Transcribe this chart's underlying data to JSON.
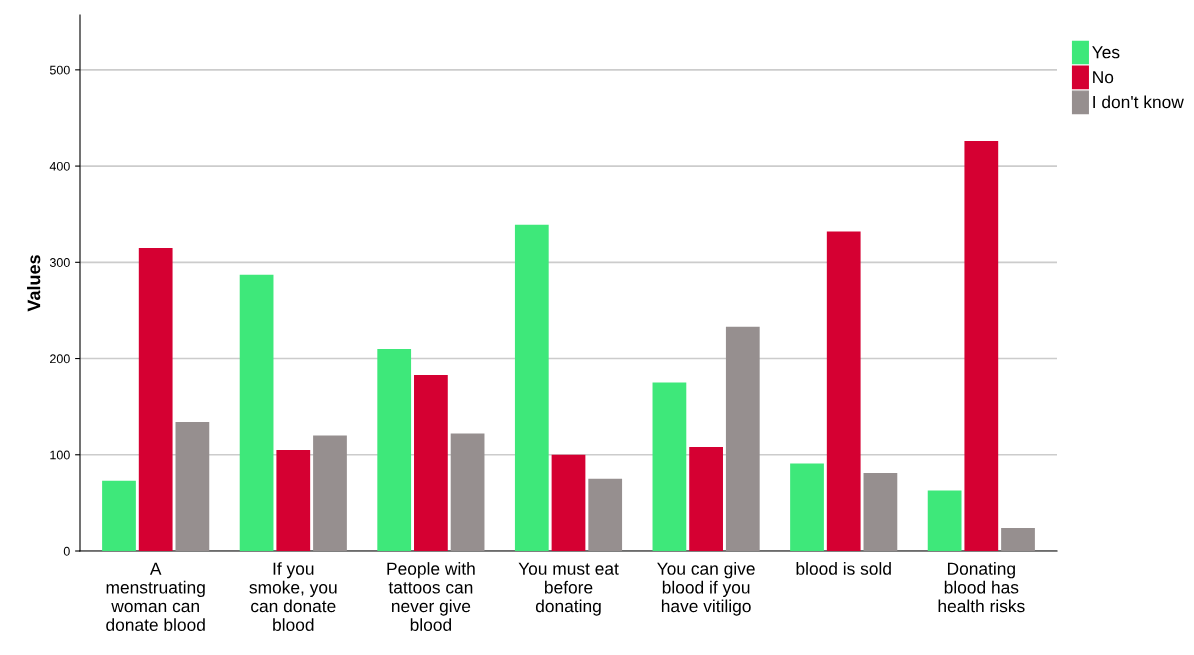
{
  "chart_data": {
    "type": "bar",
    "ylabel": "Values",
    "categories": [
      "A\nmenstruating\nwoman can\ndonate blood",
      "If you\nsmoke, you\ncan donate\nblood",
      "People with\ntattoos can\nnever give\nblood",
      "You must eat\nbefore\ndonating",
      "You can give\nblood if you\nhave vitiligo",
      "blood is sold",
      "Donating\nblood has\nhealth risks"
    ],
    "series": [
      {
        "name": "Yes",
        "color": "#3ee87a",
        "values": [
          73,
          287,
          210,
          339,
          175,
          91,
          63
        ]
      },
      {
        "name": "No",
        "color": "#d50032",
        "values": [
          315,
          105,
          183,
          100,
          108,
          332,
          426
        ]
      },
      {
        "name": "I don't know",
        "color": "#968f8f",
        "values": [
          134,
          120,
          122,
          75,
          233,
          81,
          24
        ]
      }
    ],
    "ylim": [
      0,
      557
    ],
    "yticks": [
      0,
      100,
      200,
      300,
      400,
      500
    ],
    "grid": "y",
    "legend": "top right"
  }
}
